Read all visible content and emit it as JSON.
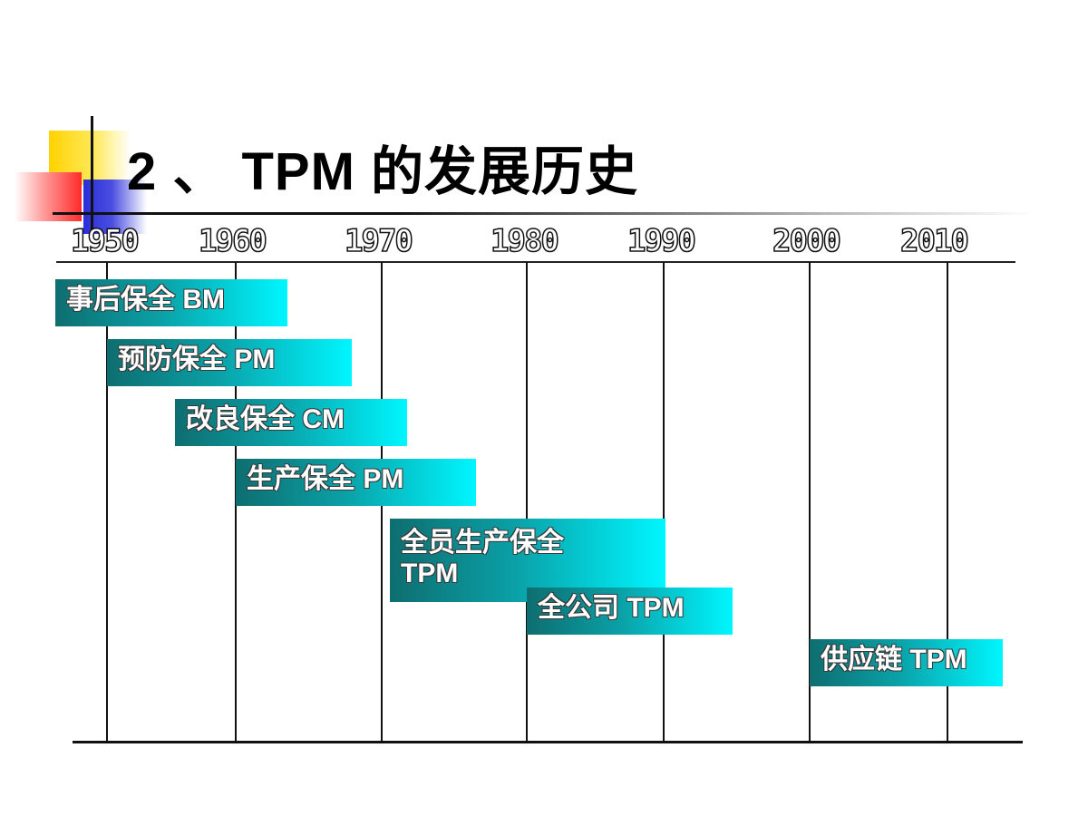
{
  "title": "2 、 TPM 的发展历史",
  "years": [
    "1950",
    "1960",
    "1970",
    "1980",
    "1990",
    "2000",
    "2010"
  ],
  "phases": [
    {
      "label": "事后保全 BM"
    },
    {
      "label": "预防保全 PM"
    },
    {
      "label": "改良保全 CM"
    },
    {
      "label": "生产保全 PM"
    },
    {
      "label": "全员生产保全 TPM"
    },
    {
      "label": "全公司 TPM"
    },
    {
      "label": "供应链 TPM"
    }
  ],
  "colors": {
    "phase_dark": "#0e6e70",
    "phase_light": "#00f6ff",
    "title": "#000000"
  }
}
